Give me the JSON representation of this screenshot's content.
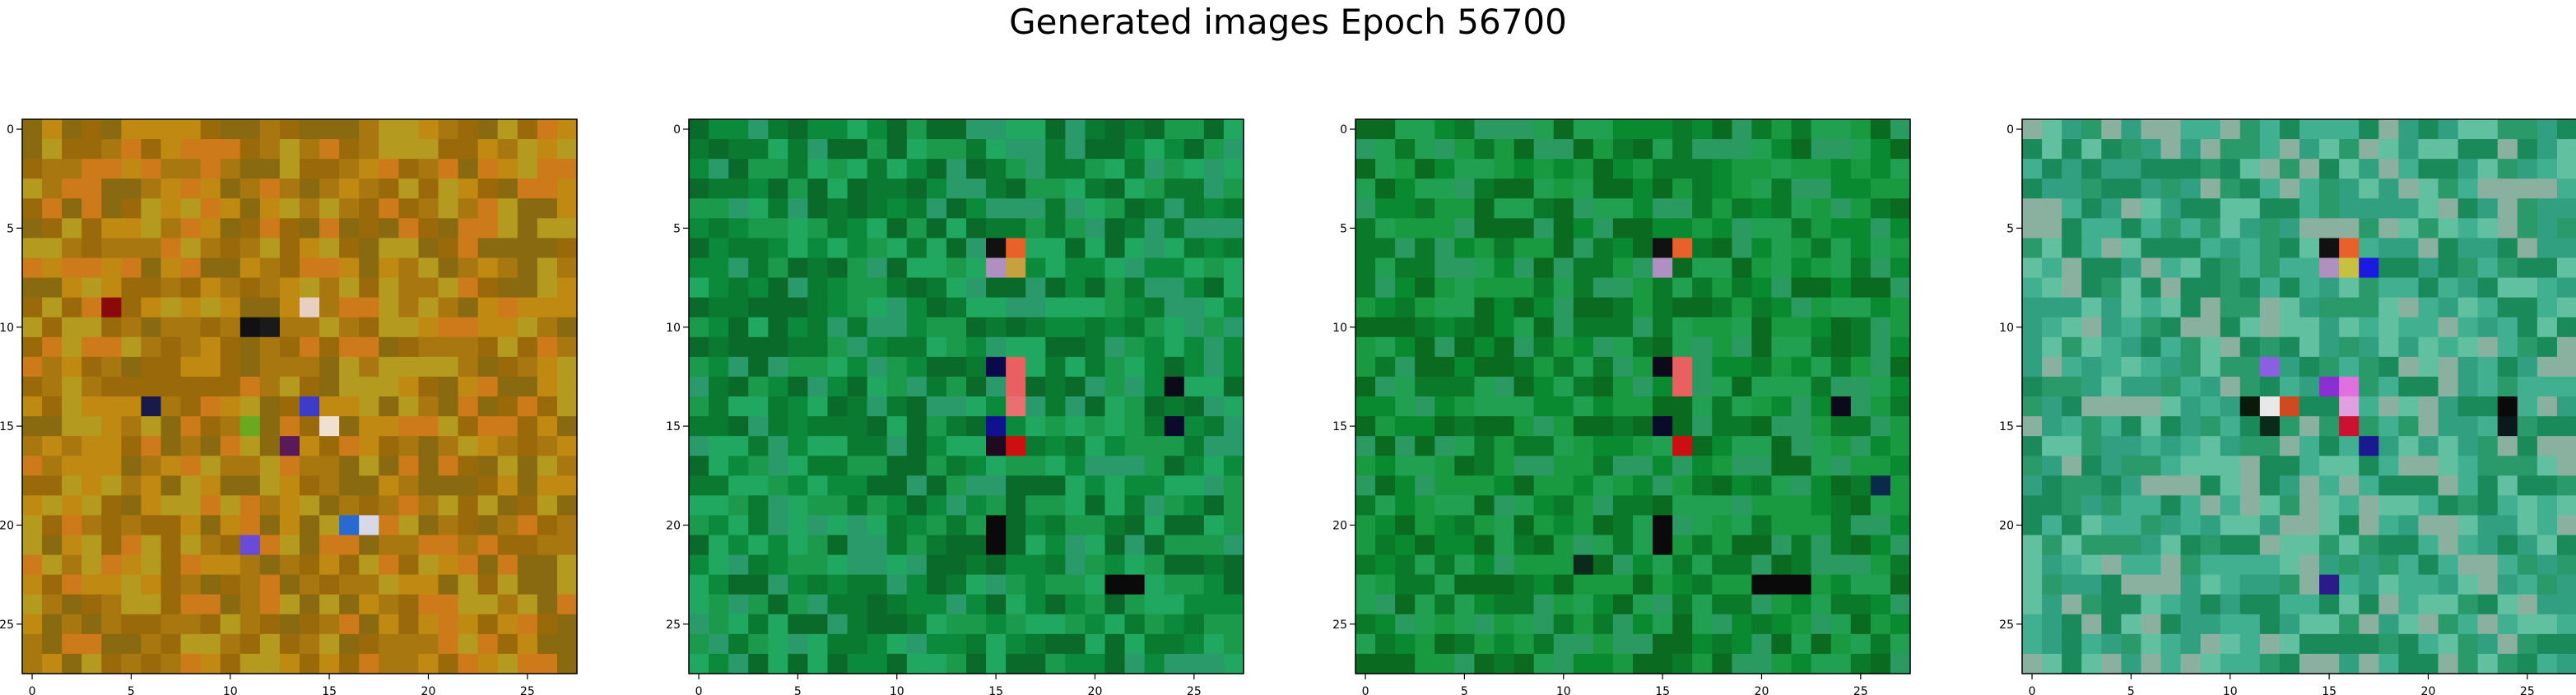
{
  "figure": {
    "title": "Generated images Epoch 56700"
  },
  "chart_data": [
    {
      "type": "heatmap",
      "title": "",
      "xlabel": "",
      "ylabel": "",
      "xlim": [
        0,
        27
      ],
      "ylim": [
        27,
        0
      ],
      "grid_size": 28,
      "x_ticks": [
        "0",
        "5",
        "10",
        "15",
        "20",
        "25"
      ],
      "y_ticks": [
        "0",
        "5",
        "10",
        "15",
        "20",
        "25"
      ],
      "base_colors": [
        "#a9770f",
        "#c08a12",
        "#9a6a0a",
        "#cc7a1a",
        "#8a6a10",
        "#b59a20"
      ],
      "highlight_cells": [
        {
          "x": 11,
          "y": 10,
          "color": "#111111"
        },
        {
          "x": 12,
          "y": 10,
          "color": "#1a1a1a"
        },
        {
          "x": 14,
          "y": 9,
          "color": "#e8d0c0"
        },
        {
          "x": 15,
          "y": 15,
          "color": "#f0e0d0"
        },
        {
          "x": 13,
          "y": 16,
          "color": "#5a1a5a"
        },
        {
          "x": 14,
          "y": 14,
          "color": "#3c3cc8"
        },
        {
          "x": 11,
          "y": 21,
          "color": "#6a4ad8"
        },
        {
          "x": 16,
          "y": 20,
          "color": "#2a6ad0"
        },
        {
          "x": 17,
          "y": 20,
          "color": "#d8d8e8"
        },
        {
          "x": 6,
          "y": 14,
          "color": "#1a1a4a"
        },
        {
          "x": 4,
          "y": 9,
          "color": "#8a0a0a"
        },
        {
          "x": 11,
          "y": 15,
          "color": "#6aa820"
        }
      ]
    },
    {
      "type": "heatmap",
      "title": "",
      "xlabel": "",
      "ylabel": "",
      "xlim": [
        0,
        27
      ],
      "ylim": [
        27,
        0
      ],
      "grid_size": 28,
      "x_ticks": [
        "0",
        "5",
        "10",
        "15",
        "20",
        "25"
      ],
      "y_ticks": [
        "0",
        "5",
        "10",
        "15",
        "20",
        "25"
      ],
      "base_colors": [
        "#0a8a3a",
        "#1a9a4a",
        "#0a7a30",
        "#20a860",
        "#0a6a2a",
        "#2a9a6a"
      ],
      "highlight_cells": [
        {
          "x": 15,
          "y": 6,
          "color": "#111111"
        },
        {
          "x": 16,
          "y": 6,
          "color": "#e8602a"
        },
        {
          "x": 15,
          "y": 7,
          "color": "#b090c0"
        },
        {
          "x": 16,
          "y": 7,
          "color": "#c8a040"
        },
        {
          "x": 16,
          "y": 12,
          "color": "#e86060"
        },
        {
          "x": 16,
          "y": 13,
          "color": "#e86060"
        },
        {
          "x": 16,
          "y": 14,
          "color": "#e87070"
        },
        {
          "x": 16,
          "y": 16,
          "color": "#cc1010"
        },
        {
          "x": 15,
          "y": 16,
          "color": "#200a20"
        },
        {
          "x": 15,
          "y": 12,
          "color": "#0a0a4a"
        },
        {
          "x": 15,
          "y": 15,
          "color": "#101090"
        },
        {
          "x": 24,
          "y": 13,
          "color": "#0a0a1a"
        },
        {
          "x": 24,
          "y": 15,
          "color": "#0a0a2a"
        },
        {
          "x": 15,
          "y": 20,
          "color": "#0a0a0a"
        },
        {
          "x": 15,
          "y": 21,
          "color": "#0a0a0a"
        },
        {
          "x": 21,
          "y": 23,
          "color": "#0a0a0a"
        },
        {
          "x": 22,
          "y": 23,
          "color": "#0a0a0a"
        }
      ]
    },
    {
      "type": "heatmap",
      "title": "",
      "xlabel": "",
      "ylabel": "",
      "xlim": [
        0,
        27
      ],
      "ylim": [
        27,
        0
      ],
      "grid_size": 28,
      "x_ticks": [
        "0",
        "5",
        "10",
        "15",
        "20",
        "25"
      ],
      "y_ticks": [
        "0",
        "5",
        "10",
        "15",
        "20",
        "25"
      ],
      "base_colors": [
        "#0a8a30",
        "#1a9a40",
        "#0a7a2a",
        "#20a050",
        "#0a6a20",
        "#2a9a60"
      ],
      "highlight_cells": [
        {
          "x": 15,
          "y": 6,
          "color": "#111111"
        },
        {
          "x": 16,
          "y": 6,
          "color": "#e8602a"
        },
        {
          "x": 15,
          "y": 7,
          "color": "#b090c0"
        },
        {
          "x": 16,
          "y": 12,
          "color": "#e86060"
        },
        {
          "x": 16,
          "y": 13,
          "color": "#e86060"
        },
        {
          "x": 16,
          "y": 16,
          "color": "#cc1010"
        },
        {
          "x": 15,
          "y": 12,
          "color": "#0a0a1a"
        },
        {
          "x": 15,
          "y": 15,
          "color": "#0a0a2a"
        },
        {
          "x": 24,
          "y": 14,
          "color": "#0a0a1a"
        },
        {
          "x": 15,
          "y": 20,
          "color": "#0a0a0a"
        },
        {
          "x": 15,
          "y": 21,
          "color": "#0a0a0a"
        },
        {
          "x": 20,
          "y": 23,
          "color": "#0a0a0a"
        },
        {
          "x": 21,
          "y": 23,
          "color": "#0a0a0a"
        },
        {
          "x": 22,
          "y": 23,
          "color": "#0a0a0a"
        },
        {
          "x": 11,
          "y": 22,
          "color": "#0a2a1a"
        },
        {
          "x": 26,
          "y": 18,
          "color": "#0a2a4a"
        }
      ]
    },
    {
      "type": "heatmap",
      "title": "",
      "xlabel": "",
      "ylabel": "",
      "xlim": [
        0,
        27
      ],
      "ylim": [
        27,
        0
      ],
      "grid_size": 28,
      "x_ticks": [
        "0",
        "5",
        "10",
        "15",
        "20",
        "25"
      ],
      "y_ticks": [
        "0",
        "5",
        "10",
        "15",
        "20",
        "25"
      ],
      "base_colors": [
        "#2a9a6a",
        "#40b090",
        "#1a8a5a",
        "#60c0a0",
        "#8ab0a0",
        "#30a080"
      ],
      "highlight_cells": [
        {
          "x": 15,
          "y": 6,
          "color": "#111111"
        },
        {
          "x": 16,
          "y": 6,
          "color": "#e8602a"
        },
        {
          "x": 15,
          "y": 7,
          "color": "#b090c0"
        },
        {
          "x": 16,
          "y": 7,
          "color": "#c8c040"
        },
        {
          "x": 17,
          "y": 7,
          "color": "#1a1ae0"
        },
        {
          "x": 15,
          "y": 13,
          "color": "#8a30d0"
        },
        {
          "x": 16,
          "y": 13,
          "color": "#e070e0"
        },
        {
          "x": 16,
          "y": 14,
          "color": "#e0a0e0"
        },
        {
          "x": 16,
          "y": 15,
          "color": "#cc1030"
        },
        {
          "x": 13,
          "y": 14,
          "color": "#d04a20"
        },
        {
          "x": 12,
          "y": 14,
          "color": "#e8e8e8"
        },
        {
          "x": 12,
          "y": 12,
          "color": "#8a60e0"
        },
        {
          "x": 24,
          "y": 14,
          "color": "#0a0a0a"
        },
        {
          "x": 24,
          "y": 15,
          "color": "#0a1a1a"
        },
        {
          "x": 15,
          "y": 23,
          "color": "#2a1a8a"
        },
        {
          "x": 11,
          "y": 14,
          "color": "#0a1a0a"
        },
        {
          "x": 12,
          "y": 15,
          "color": "#0a2a1a"
        },
        {
          "x": 17,
          "y": 16,
          "color": "#1a1a90"
        }
      ]
    }
  ]
}
